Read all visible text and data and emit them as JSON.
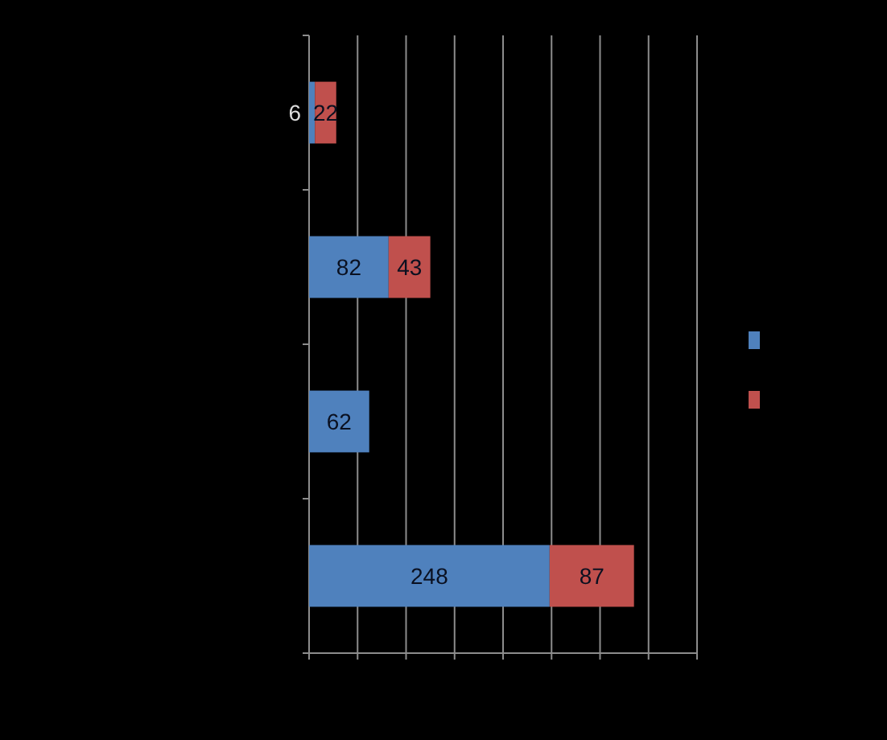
{
  "chart_data": {
    "type": "bar",
    "orientation": "horizontal",
    "stacked": true,
    "categories": [
      null,
      null,
      null,
      null
    ],
    "series": [
      {
        "color": "#4f81bd",
        "values": [
          6,
          82,
          62,
          248
        ]
      },
      {
        "color": "#c0504d",
        "values": [
          22,
          43,
          null,
          87
        ]
      }
    ],
    "xlim": [
      0,
      400
    ],
    "xticks": [
      {
        "value": 0,
        "label": null
      },
      {
        "value": 50,
        "label": null
      },
      {
        "value": 100,
        "label": null
      },
      {
        "value": 150,
        "label": null
      },
      {
        "value": 200,
        "label": null
      },
      {
        "value": 250,
        "label": null
      },
      {
        "value": 300,
        "label": null
      },
      {
        "value": 350,
        "label": null
      },
      {
        "value": 400,
        "label": null
      }
    ],
    "grid": "x",
    "data_labels": true
  }
}
